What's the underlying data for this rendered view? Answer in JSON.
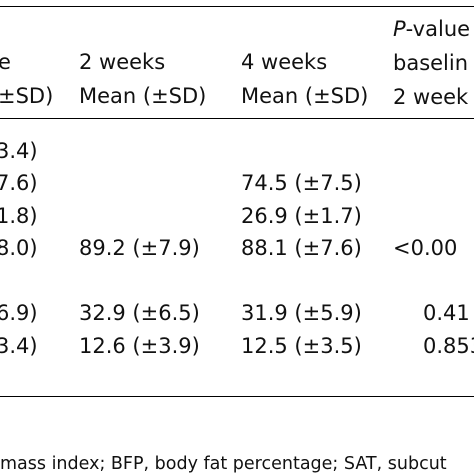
{
  "header": {
    "col0_line1": "e",
    "col0_line2": "±SD)",
    "col1_line1": "2 weeks",
    "col1_line2": "Mean (±SD)",
    "col2_line1": "4 weeks",
    "col2_line2": "Mean (±SD)",
    "col3_line1_italic": "P",
    "col3_line1_rest": "-value",
    "col3_line2": "baselin",
    "col3_line3": "2 week"
  },
  "rows": [
    {
      "c0": "3.4)",
      "c1": "",
      "c2": "",
      "c3": ""
    },
    {
      "c0": "7.6)",
      "c1": "",
      "c2": "74.5 (±7.5)",
      "c3": ""
    },
    {
      "c0": "1.8)",
      "c1": "",
      "c2": "26.9 (±1.7)",
      "c3": ""
    },
    {
      "c0": "8.0)",
      "c1": "89.2 (±7.9)",
      "c2": "88.1 (±7.6)",
      "c3": "<0.00"
    },
    {
      "c0": "6.9)",
      "c1": "32.9 (±6.5)",
      "c2": "31.9 (±5.9)",
      "c3": "0.41"
    },
    {
      "c0": "3.4)",
      "c1": "12.6 (±3.9)",
      "c2": "12.5 (±3.5)",
      "c3": "0.853"
    }
  ],
  "footnote": "mass index; BFP, body fat percentage; SAT, subcut"
}
